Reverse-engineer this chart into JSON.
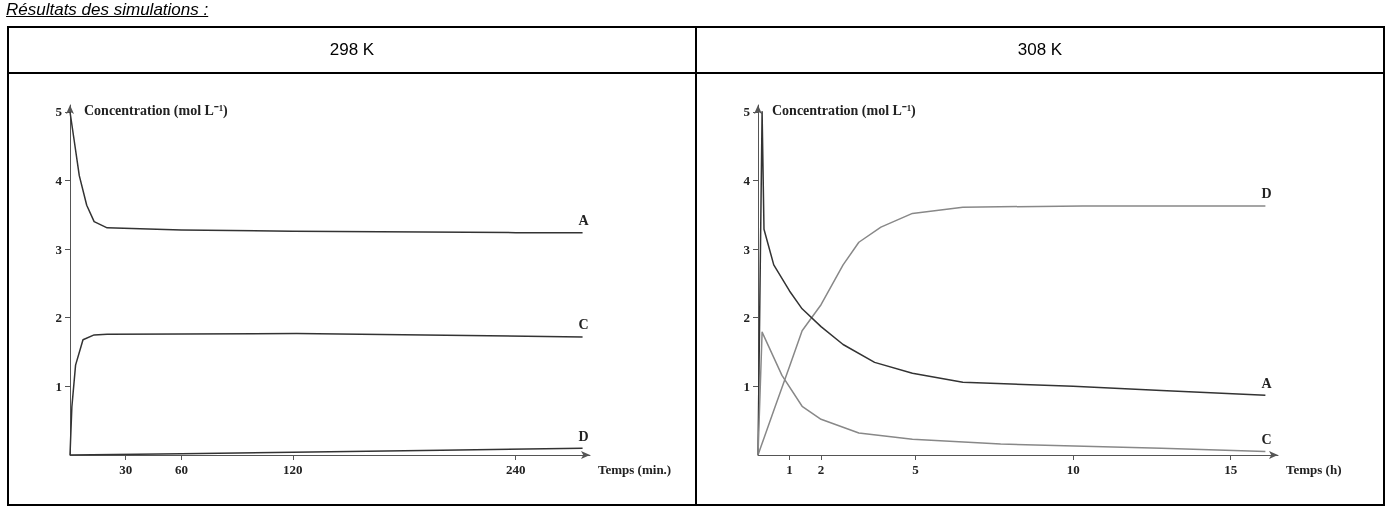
{
  "chart_data": [
    {
      "type": "line",
      "title": "298 K",
      "xlabel": "Temps (min.)",
      "ylabel": "Concentration (mol L⁻¹)",
      "annotations": [
        "Résultats des simulations :"
      ],
      "xlim": [
        0,
        280
      ],
      "xticks": [
        30,
        60,
        120,
        240
      ],
      "ylim": [
        0,
        5.1
      ],
      "yticks": [
        1,
        2,
        3,
        4,
        5
      ],
      "marker": "none",
      "series": [
        {
          "name": "A",
          "color": "#333333",
          "x": [
            0,
            2,
            5,
            9,
            13,
            20,
            60,
            120,
            240,
            276
          ],
          "values": [
            5,
            4.63,
            4.07,
            3.64,
            3.4,
            3.31,
            3.28,
            3.26,
            3.24,
            3.24
          ]
        },
        {
          "name": "C",
          "color": "#333333",
          "x": [
            0,
            1,
            3,
            7,
            13,
            20,
            122,
            276
          ],
          "values": [
            0,
            0.7,
            1.31,
            1.68,
            1.75,
            1.76,
            1.77,
            1.72
          ]
        },
        {
          "name": "D",
          "color": "#333333",
          "x": [
            0,
            60,
            120,
            200,
            276
          ],
          "values": [
            0,
            0.02,
            0.04,
            0.07,
            0.1
          ]
        }
      ]
    },
    {
      "type": "line",
      "title": "308 K",
      "xlabel": "Temps (h)",
      "ylabel": "Concentration (mol L⁻¹)",
      "xlim": [
        0,
        16.5
      ],
      "xticks": [
        1,
        2,
        5,
        10,
        15
      ],
      "ylim": [
        0,
        5.1
      ],
      "yticks": [
        1,
        2,
        3,
        4,
        5
      ],
      "marker": "none",
      "series": [
        {
          "name": "D",
          "color": "#888888",
          "x": [
            0,
            0.5,
            1,
            1.4,
            2,
            2.7,
            3.2,
            3.9,
            4.9,
            6.5,
            10.3,
            16.1
          ],
          "values": [
            0,
            0.65,
            1.29,
            1.81,
            2.19,
            2.77,
            3.1,
            3.32,
            3.52,
            3.61,
            3.63,
            3.63
          ]
        },
        {
          "name": "A",
          "color": "#333333",
          "x": [
            0,
            0.13,
            0.19,
            0.5,
            1,
            1.4,
            2,
            2.7,
            3.7,
            4.9,
            6.5,
            10,
            12.8,
            16.1
          ],
          "values": [
            0,
            5,
            3.29,
            2.77,
            2.39,
            2.13,
            1.87,
            1.61,
            1.35,
            1.19,
            1.06,
            1,
            0.94,
            0.87
          ]
        },
        {
          "name": "C",
          "color": "#888888",
          "x": [
            0,
            0.13,
            0.76,
            1.4,
            2,
            3.2,
            4.9,
            7.7,
            12.8,
            16.1
          ],
          "values": [
            0,
            1.79,
            1.16,
            0.71,
            0.52,
            0.32,
            0.23,
            0.16,
            0.1,
            0.05
          ]
        }
      ]
    }
  ]
}
